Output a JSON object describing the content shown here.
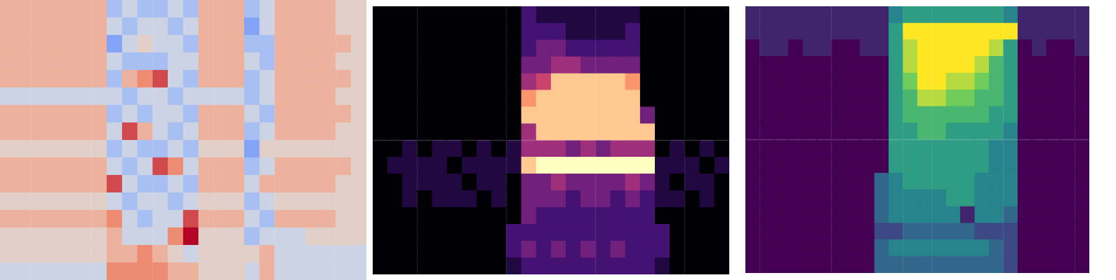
{
  "chart_data": [
    {
      "type": "heatmap",
      "color": "coolwarm",
      "color_range": [
        0,
        9
      ],
      "grid": false,
      "tick_labels": false,
      "cells": [
        [
          6,
          6,
          6,
          6,
          6,
          6,
          6,
          3,
          4,
          3,
          3,
          4,
          3,
          6,
          6,
          6,
          3,
          4,
          6,
          6,
          6,
          6,
          5,
          5
        ],
        [
          6,
          6,
          6,
          6,
          6,
          6,
          6,
          4,
          3,
          4,
          4,
          3,
          4,
          6,
          6,
          6,
          2,
          4,
          6,
          6,
          6,
          6,
          5,
          5
        ],
        [
          6,
          6,
          6,
          6,
          6,
          6,
          6,
          2,
          4,
          5,
          4,
          4,
          3,
          6,
          6,
          6,
          3,
          3,
          6,
          6,
          6,
          6,
          6,
          5
        ],
        [
          6,
          6,
          6,
          6,
          6,
          6,
          6,
          4,
          3,
          3,
          3,
          4,
          4,
          6,
          6,
          6,
          4,
          3,
          6,
          6,
          6,
          6,
          5,
          5
        ],
        [
          6,
          6,
          6,
          6,
          6,
          6,
          6,
          3,
          6,
          7,
          8,
          4,
          3,
          6,
          6,
          6,
          3,
          4,
          6,
          6,
          6,
          6,
          6,
          5
        ],
        [
          4,
          4,
          4,
          4,
          4,
          4,
          4,
          4,
          3,
          4,
          4,
          3,
          4,
          4,
          4,
          4,
          3,
          4,
          6,
          6,
          6,
          6,
          5,
          5
        ],
        [
          6,
          6,
          6,
          6,
          6,
          6,
          6,
          3,
          4,
          3,
          4,
          4,
          3,
          6,
          6,
          6,
          4,
          3,
          6,
          6,
          6,
          6,
          6,
          5
        ],
        [
          6,
          6,
          6,
          6,
          6,
          6,
          6,
          4,
          8,
          6,
          4,
          3,
          4,
          6,
          6,
          6,
          3,
          4,
          6,
          6,
          6,
          6,
          5,
          5
        ],
        [
          5,
          5,
          5,
          5,
          5,
          5,
          5,
          3,
          4,
          3,
          3,
          4,
          3,
          5,
          5,
          5,
          2,
          5,
          5,
          5,
          5,
          5,
          5,
          5
        ],
        [
          6,
          6,
          6,
          6,
          6,
          6,
          6,
          4,
          3,
          4,
          8,
          7,
          4,
          6,
          6,
          6,
          3,
          4,
          6,
          6,
          6,
          6,
          6,
          5
        ],
        [
          6,
          6,
          6,
          6,
          6,
          6,
          6,
          8,
          4,
          3,
          3,
          4,
          3,
          6,
          6,
          6,
          4,
          6,
          6,
          6,
          6,
          6,
          5,
          5
        ],
        [
          5,
          5,
          5,
          5,
          5,
          5,
          5,
          4,
          3,
          4,
          4,
          3,
          4,
          5,
          5,
          5,
          3,
          4,
          5,
          5,
          5,
          5,
          5,
          5
        ],
        [
          6,
          6,
          6,
          6,
          6,
          6,
          6,
          7,
          4,
          3,
          4,
          4,
          8,
          6,
          6,
          6,
          4,
          3,
          6,
          6,
          6,
          6,
          5,
          5
        ],
        [
          5,
          5,
          5,
          5,
          5,
          5,
          5,
          6,
          4,
          4,
          4,
          7,
          9,
          5,
          5,
          5,
          3,
          4,
          4,
          4,
          5,
          5,
          5,
          5
        ],
        [
          5,
          5,
          5,
          5,
          5,
          5,
          5,
          6,
          6,
          7,
          6,
          5,
          4,
          5,
          5,
          5,
          5,
          6,
          4,
          4,
          4,
          4,
          4,
          4
        ],
        [
          4,
          4,
          4,
          4,
          4,
          4,
          4,
          7,
          7,
          7,
          7,
          6,
          6,
          5,
          5,
          5,
          4,
          6,
          4,
          4,
          4,
          4,
          4,
          4
        ]
      ]
    },
    {
      "type": "heatmap",
      "color": "magma",
      "color_range": [
        0,
        9
      ],
      "grid": false,
      "tick_labels": false,
      "cells": [
        [
          0,
          0,
          0,
          0,
          0,
          0,
          0,
          0,
          0,
          0,
          2,
          1,
          1,
          1,
          1,
          1,
          1,
          1,
          0,
          0,
          0,
          0,
          0,
          0
        ],
        [
          0,
          0,
          0,
          0,
          0,
          0,
          0,
          0,
          0,
          0,
          2,
          2,
          2,
          1,
          1,
          1,
          1,
          2,
          0,
          0,
          0,
          0,
          0,
          0
        ],
        [
          0,
          0,
          0,
          0,
          0,
          0,
          0,
          0,
          0,
          0,
          2,
          3,
          3,
          2,
          2,
          2,
          2,
          2,
          0,
          0,
          0,
          0,
          0,
          0
        ],
        [
          0,
          0,
          0,
          0,
          0,
          0,
          0,
          0,
          0,
          0,
          3,
          3,
          4,
          4,
          3,
          3,
          3,
          3,
          0,
          0,
          0,
          0,
          0,
          0
        ],
        [
          0,
          0,
          0,
          0,
          0,
          0,
          0,
          0,
          0,
          0,
          4,
          5,
          8,
          8,
          8,
          8,
          8,
          7,
          0,
          0,
          0,
          0,
          0,
          0
        ],
        [
          0,
          0,
          0,
          0,
          0,
          0,
          0,
          0,
          0,
          0,
          7,
          8,
          8,
          8,
          8,
          8,
          8,
          8,
          0,
          0,
          0,
          0,
          0,
          0
        ],
        [
          0,
          0,
          0,
          0,
          0,
          0,
          0,
          0,
          0,
          0,
          8,
          8,
          8,
          8,
          8,
          8,
          8,
          8,
          3,
          0,
          0,
          0,
          0,
          0
        ],
        [
          0,
          0,
          0,
          0,
          0,
          0,
          0,
          0,
          0,
          0,
          4,
          8,
          8,
          8,
          8,
          8,
          8,
          8,
          8,
          0,
          0,
          0,
          0,
          0
        ],
        [
          0,
          0,
          1,
          0,
          1,
          1,
          0,
          1,
          0,
          1,
          4,
          4,
          4,
          3,
          4,
          3,
          4,
          4,
          4,
          0,
          1,
          0,
          1,
          0
        ],
        [
          0,
          1,
          1,
          1,
          1,
          0,
          1,
          1,
          1,
          1,
          8,
          9,
          9,
          9,
          9,
          9,
          9,
          9,
          9,
          1,
          1,
          1,
          0,
          1
        ],
        [
          0,
          0,
          1,
          1,
          1,
          1,
          0,
          1,
          1,
          0,
          3,
          3,
          4,
          3,
          3,
          3,
          3,
          4,
          3,
          1,
          0,
          1,
          1,
          0
        ],
        [
          0,
          0,
          1,
          0,
          1,
          1,
          1,
          0,
          1,
          0,
          3,
          3,
          3,
          2,
          3,
          3,
          2,
          3,
          2,
          1,
          1,
          0,
          1,
          0
        ],
        [
          0,
          0,
          0,
          0,
          0,
          0,
          0,
          0,
          0,
          0,
          3,
          2,
          2,
          2,
          2,
          2,
          2,
          2,
          2,
          0,
          0,
          0,
          0,
          0
        ],
        [
          0,
          0,
          0,
          0,
          0,
          0,
          0,
          0,
          0,
          2,
          2,
          2,
          2,
          2,
          2,
          2,
          2,
          2,
          2,
          2,
          0,
          0,
          0,
          0
        ],
        [
          0,
          0,
          0,
          0,
          0,
          0,
          0,
          0,
          0,
          2,
          3,
          2,
          3,
          2,
          3,
          2,
          3,
          2,
          2,
          2,
          0,
          0,
          0,
          0
        ],
        [
          0,
          0,
          0,
          0,
          0,
          0,
          0,
          0,
          0,
          1,
          2,
          2,
          2,
          2,
          2,
          2,
          2,
          2,
          2,
          1,
          0,
          0,
          0,
          0
        ]
      ]
    },
    {
      "type": "heatmap",
      "color": "viridis",
      "color_range": [
        0,
        9
      ],
      "grid": false,
      "tick_labels": false,
      "cells": [
        [
          1,
          1,
          1,
          1,
          1,
          1,
          1,
          1,
          1,
          1,
          4,
          5,
          5,
          5,
          5,
          5,
          5,
          5,
          4,
          1,
          1,
          1,
          1,
          1
        ],
        [
          1,
          1,
          1,
          1,
          1,
          1,
          1,
          1,
          1,
          1,
          5,
          9,
          9,
          9,
          9,
          9,
          9,
          9,
          9,
          1,
          1,
          1,
          1,
          1
        ],
        [
          0,
          1,
          1,
          0,
          1,
          1,
          0,
          0,
          1,
          1,
          5,
          8,
          9,
          9,
          9,
          9,
          9,
          8,
          5,
          0,
          1,
          0,
          0,
          1
        ],
        [
          0,
          0,
          0,
          0,
          0,
          0,
          0,
          0,
          0,
          0,
          5,
          8,
          9,
          9,
          9,
          9,
          8,
          6,
          5,
          0,
          0,
          0,
          0,
          0
        ],
        [
          0,
          0,
          0,
          0,
          0,
          0,
          0,
          0,
          0,
          0,
          5,
          7,
          9,
          9,
          8,
          8,
          7,
          6,
          5,
          0,
          0,
          0,
          0,
          0
        ],
        [
          0,
          0,
          0,
          0,
          0,
          0,
          0,
          0,
          0,
          0,
          5,
          6,
          8,
          8,
          7,
          7,
          6,
          6,
          5,
          0,
          0,
          0,
          0,
          0
        ],
        [
          0,
          0,
          0,
          0,
          0,
          0,
          0,
          0,
          0,
          0,
          5,
          6,
          6,
          6,
          6,
          6,
          6,
          5,
          5,
          0,
          0,
          0,
          0,
          0
        ],
        [
          0,
          0,
          0,
          0,
          0,
          0,
          0,
          0,
          0,
          0,
          5,
          5,
          6,
          6,
          5,
          5,
          5,
          5,
          4,
          0,
          0,
          0,
          0,
          0
        ],
        [
          0,
          0,
          0,
          0,
          0,
          0,
          0,
          0,
          0,
          0,
          5,
          5,
          5,
          5,
          5,
          5,
          5,
          4,
          4,
          0,
          0,
          0,
          0,
          0
        ],
        [
          0,
          0,
          0,
          0,
          0,
          0,
          0,
          0,
          0,
          0,
          5,
          5,
          5,
          5,
          5,
          5,
          5,
          4,
          4,
          0,
          0,
          0,
          0,
          0
        ],
        [
          0,
          0,
          0,
          0,
          0,
          0,
          0,
          0,
          0,
          3,
          4,
          5,
          5,
          5,
          5,
          5,
          4,
          4,
          4,
          0,
          0,
          0,
          0,
          0
        ],
        [
          0,
          0,
          0,
          0,
          0,
          0,
          0,
          0,
          0,
          3,
          4,
          4,
          4,
          4,
          5,
          5,
          4,
          4,
          4,
          0,
          0,
          0,
          0,
          0
        ],
        [
          0,
          0,
          0,
          0,
          0,
          0,
          0,
          0,
          0,
          3,
          4,
          4,
          4,
          4,
          4,
          1,
          4,
          4,
          3,
          0,
          0,
          0,
          0,
          0
        ],
        [
          0,
          0,
          0,
          0,
          0,
          0,
          0,
          0,
          0,
          2,
          2,
          3,
          3,
          3,
          3,
          3,
          2,
          2,
          2,
          0,
          0,
          0,
          0,
          0
        ],
        [
          0,
          0,
          0,
          0,
          0,
          0,
          0,
          0,
          0,
          3,
          4,
          4,
          4,
          4,
          4,
          4,
          4,
          3,
          2,
          0,
          0,
          0,
          0,
          0
        ],
        [
          0,
          0,
          0,
          0,
          0,
          0,
          0,
          0,
          0,
          3,
          3,
          3,
          3,
          3,
          3,
          3,
          3,
          3,
          2,
          0,
          0,
          0,
          0,
          0
        ]
      ]
    }
  ]
}
